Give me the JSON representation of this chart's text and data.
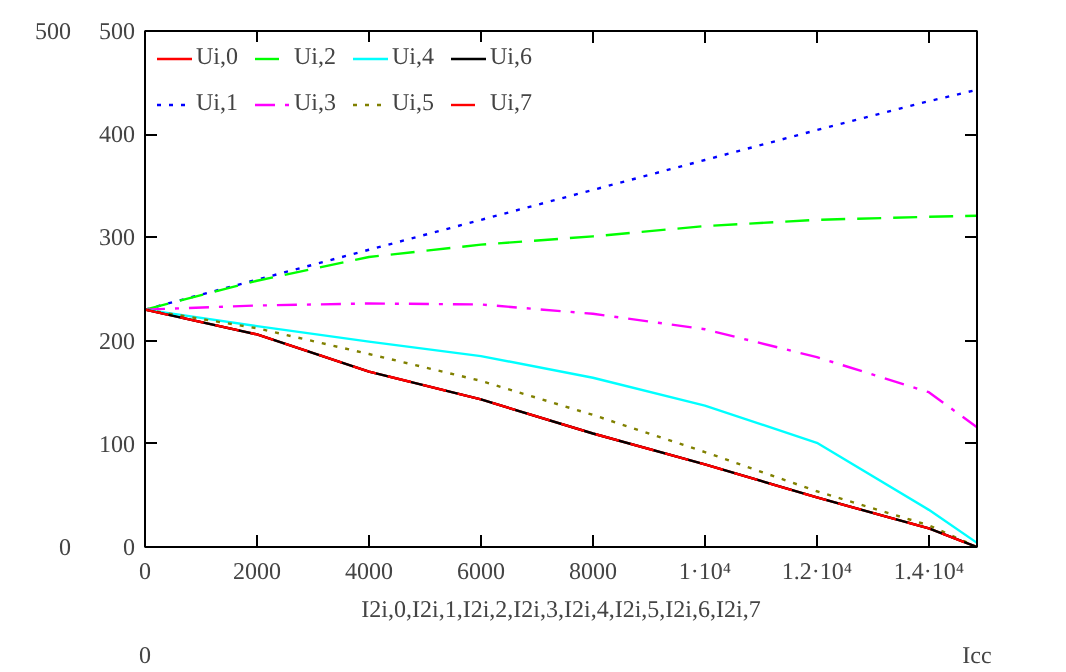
{
  "chart_data": {
    "type": "line",
    "xlabel": "I2i,0,I2i,1,I2i,2,I2i,3,I2i,4,I2i,5,I2i,6,I2i,7",
    "x": [
      0,
      2000,
      4000,
      6000,
      8000,
      10000,
      12000,
      14000,
      14860
    ],
    "series": [
      {
        "name": "Ui,0",
        "color": "#ff0000",
        "line_style": "solid",
        "values": [
          230,
          206,
          170,
          143,
          110,
          80,
          48,
          18,
          0
        ]
      },
      {
        "name": "Ui,1",
        "color": "#0000ff",
        "line_style": "dotted",
        "values": [
          230,
          259,
          288,
          317,
          346,
          375,
          404,
          432,
          443
        ]
      },
      {
        "name": "Ui,2",
        "color": "#00ff00",
        "line_style": "dashed",
        "values": [
          230,
          258,
          281,
          293,
          301,
          311,
          317,
          320,
          321
        ]
      },
      {
        "name": "Ui,3",
        "color": "#ff00ff",
        "line_style": "dashdot",
        "values": [
          230,
          234,
          236,
          235,
          226,
          211,
          184,
          150,
          116
        ]
      },
      {
        "name": "Ui,4",
        "color": "#00ffff",
        "line_style": "solid",
        "values": [
          230,
          214,
          199,
          185,
          164,
          137,
          101,
          36,
          4
        ]
      },
      {
        "name": "Ui,5",
        "color": "#808000",
        "line_style": "dotted",
        "values": [
          230,
          212,
          187,
          161,
          128,
          92,
          54,
          21,
          0
        ]
      },
      {
        "name": "Ui,6",
        "color": "#000000",
        "line_style": "solid",
        "values": [
          230,
          206,
          170,
          143,
          110,
          80,
          48,
          18,
          0
        ]
      },
      {
        "name": "Ui,7",
        "color": "#ff0000",
        "line_style": "dashed",
        "values": [
          230,
          206,
          170,
          143,
          110,
          80,
          48,
          18,
          0
        ]
      }
    ],
    "xlim": [
      0,
      14860
    ],
    "ylim": [
      0,
      500
    ],
    "xticks": [
      0,
      2000,
      4000,
      6000,
      8000,
      {
        "value": 10000,
        "label": "1·10⁴"
      },
      {
        "value": 12000,
        "label": "1.2·10⁴"
      },
      {
        "value": 14000,
        "label": "1.4·10⁴"
      }
    ],
    "yticks": [
      0,
      100,
      200,
      300,
      400,
      500
    ],
    "grid": false,
    "legend": "top left",
    "annotations": [
      "500",
      "0",
      "0",
      "Icc"
    ]
  }
}
